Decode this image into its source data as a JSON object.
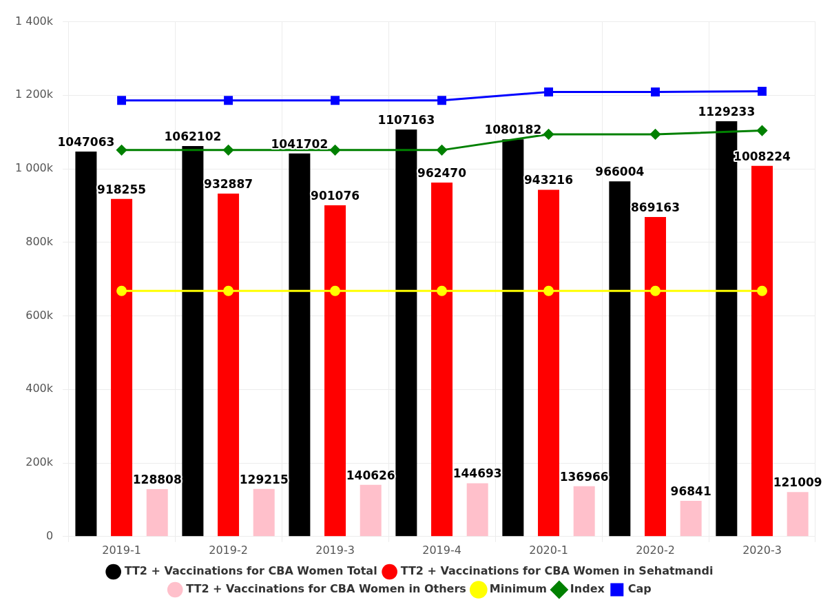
{
  "chart_data": {
    "type": "bar",
    "categories": [
      "2019-1",
      "2019-2",
      "2019-3",
      "2019-4",
      "2020-1",
      "2020-2",
      "2020-3"
    ],
    "series": [
      {
        "name": "TT2 + Vaccinations for CBA Women Total",
        "color": "#000000",
        "values": [
          1047063,
          1062102,
          1041702,
          1107163,
          1080182,
          966004,
          1129233
        ],
        "value_labels": [
          "1047063",
          "1062102",
          "1041702",
          "1107163",
          "1080182",
          "966004",
          "1129233"
        ]
      },
      {
        "name": "TT2 + Vaccinations for CBA Women in Sehatmandi",
        "color": "#ff0000",
        "values": [
          918255,
          932887,
          901076,
          962470,
          943216,
          869163,
          1008224
        ],
        "value_labels": [
          "918255",
          "932887",
          "901076",
          "962470",
          "943216",
          "869163",
          "1008224"
        ]
      },
      {
        "name": "TT2 + Vaccinations for CBA Women in Others",
        "color": "#ffc0cb",
        "values": [
          128808,
          129215,
          140626,
          144693,
          136966,
          96841,
          121009
        ],
        "value_labels": [
          "128808",
          "129215",
          "140626",
          "144693",
          "136966",
          "96841",
          "121009"
        ]
      },
      {
        "name": "Minimum",
        "type": "line",
        "marker": "circle",
        "color": "#ffff00",
        "values": [
          668000,
          668000,
          668000,
          668000,
          668000,
          668000,
          668000
        ]
      },
      {
        "name": "Index",
        "type": "line",
        "marker": "diamond",
        "color": "#008000",
        "values": [
          1051000,
          1051000,
          1051000,
          1051000,
          1094000,
          1094000,
          1104000
        ]
      },
      {
        "name": "Cap",
        "type": "line",
        "marker": "square",
        "color": "#0000ff",
        "values": [
          1186000,
          1186000,
          1186000,
          1186000,
          1209000,
          1209000,
          1211000
        ]
      }
    ],
    "ylim": [
      0,
      1400000
    ],
    "yticks": [
      0,
      {
        "value": 200000,
        "label": "200k"
      },
      {
        "value": 400000,
        "label": "400k"
      },
      {
        "value": 600000,
        "label": "600k"
      },
      {
        "value": 800000,
        "label": "800k"
      },
      {
        "value": 1000000,
        "label": "1 000k"
      },
      {
        "value": 1200000,
        "label": "1 200k"
      },
      {
        "value": 1400000,
        "label": "1 400k"
      }
    ],
    "grid": true,
    "legend": "bottom"
  }
}
